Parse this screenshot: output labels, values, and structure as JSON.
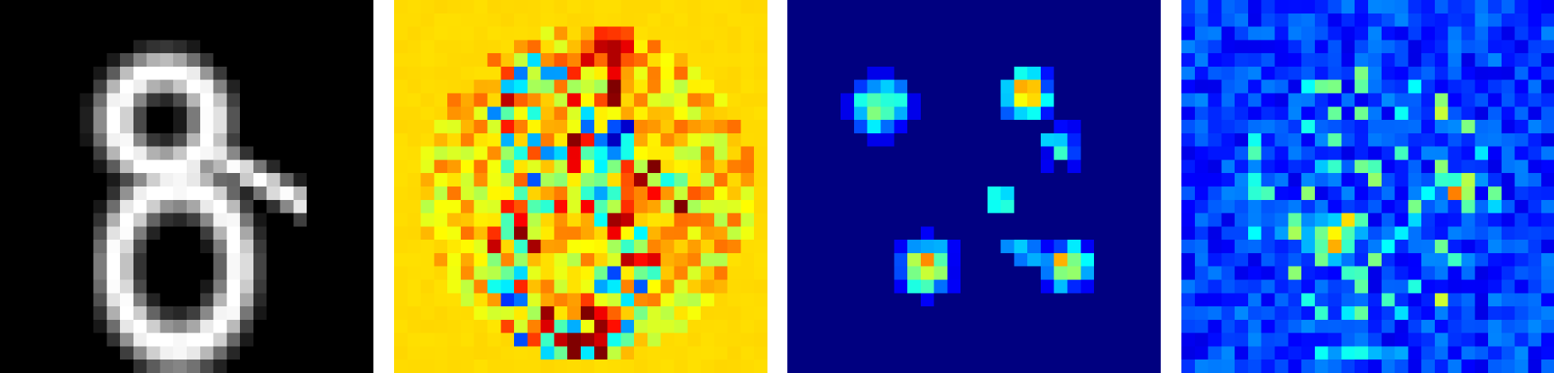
{
  "figure": {
    "grid_size": 28,
    "panels": [
      {
        "colormap": "gray",
        "background": "#000000"
      },
      {
        "colormap": "jet",
        "background": "#eeff00"
      },
      {
        "colormap": "jet",
        "background": "#000080"
      },
      {
        "colormap": "jet",
        "background": "#0000a8"
      }
    ]
  }
}
